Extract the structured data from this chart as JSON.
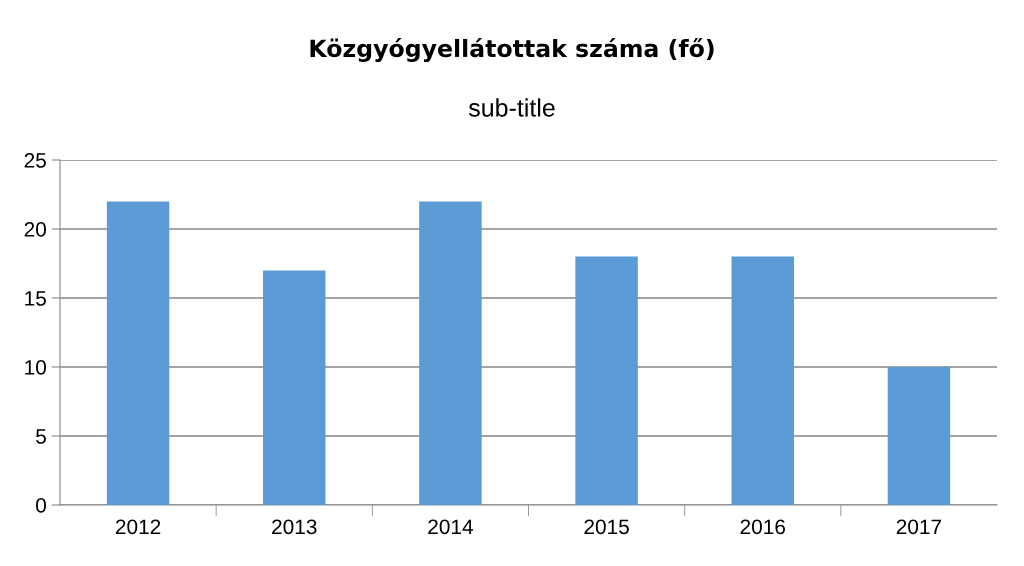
{
  "chart_data": {
    "type": "bar",
    "title": "Közgyógyellátottak száma (fő)",
    "subtitle": "sub-title",
    "categories": [
      "2012",
      "2013",
      "2014",
      "2015",
      "2016",
      "2017"
    ],
    "values": [
      22,
      17,
      22,
      18,
      18,
      10
    ],
    "color": "#5b9bd5",
    "ylim": [
      0,
      25
    ],
    "yticks": [
      0,
      5,
      10,
      15,
      20,
      25
    ],
    "grid": "y",
    "legend": false
  }
}
